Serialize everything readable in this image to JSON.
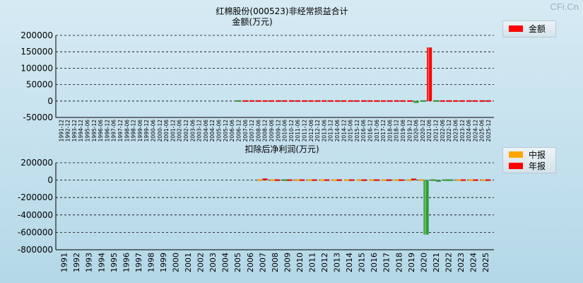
{
  "watermark": "CFi.Cn",
  "colors": {
    "red": "#ff0000",
    "orange": "#ffa500",
    "green": "#2e9e2e",
    "grid": "#000000"
  },
  "chart_data": [
    {
      "type": "bar",
      "title": "红棉股份(000523)非经常损益合计",
      "subtitle": "金额(万元)",
      "ylim": [
        -50000,
        200000
      ],
      "yticks": [
        200000,
        150000,
        100000,
        50000,
        0,
        -50000
      ],
      "grid": true,
      "legend_position": "top-right",
      "categories": [
        "1991-12",
        "1992-12",
        "1993-12",
        "1994-12",
        "1995-06",
        "1995-12",
        "1996-06",
        "1996-12",
        "1997-06",
        "1997-12",
        "1998-06",
        "1998-12",
        "1999-06",
        "1999-12",
        "2000-06",
        "2000-12",
        "2001-06",
        "2001-12",
        "2002-06",
        "2002-12",
        "2003-06",
        "2003-12",
        "2004-06",
        "2004-12",
        "2005-06",
        "2005-12",
        "2006-06",
        "2006-12",
        "2007-06",
        "2007-12",
        "2008-06",
        "2008-12",
        "2009-06",
        "2009-12",
        "2010-06",
        "2010-12",
        "2011-06",
        "2011-12",
        "2012-06",
        "2012-12",
        "2013-06",
        "2013-12",
        "2014-06",
        "2014-12",
        "2015-06",
        "2015-12",
        "2016-06",
        "2016-12",
        "2017-06",
        "2017-12",
        "2018-06",
        "2018-12",
        "2019-06",
        "2019-12",
        "2020-06",
        "2020-12",
        "2021-06",
        "2021-12",
        "2022-06",
        "2022-12",
        "2023-06",
        "2023-12",
        "2024-06",
        "2024-12",
        "2025-06",
        "2025-12"
      ],
      "series": [
        {
          "name": "金额",
          "color": "#ff0000",
          "values": [
            null,
            null,
            null,
            null,
            null,
            null,
            null,
            null,
            null,
            null,
            null,
            null,
            null,
            null,
            null,
            null,
            null,
            null,
            null,
            null,
            null,
            null,
            null,
            null,
            null,
            null,
            null,
            -300,
            1200,
            1500,
            900,
            1100,
            800,
            1000,
            700,
            900,
            600,
            800,
            700,
            900,
            600,
            800,
            700,
            900,
            600,
            800,
            700,
            900,
            1000,
            1200,
            900,
            1100,
            2500,
            3500,
            -5500,
            -2000,
            163000,
            -1500,
            600,
            800,
            500,
            2500,
            700,
            900,
            1200,
            1500
          ]
        }
      ]
    },
    {
      "type": "bar",
      "title": "扣除后净利润(万元)",
      "ylim": [
        -800000,
        200000
      ],
      "yticks": [
        200000,
        0,
        -200000,
        -400000,
        -600000,
        -800000
      ],
      "grid": true,
      "legend_position": "top-right",
      "categories": [
        "1991",
        "1992",
        "1993",
        "1994",
        "1995",
        "1996",
        "1997",
        "1998",
        "1999",
        "2000",
        "2001",
        "2002",
        "2003",
        "2004",
        "2005",
        "2006",
        "2007",
        "2008",
        "2009",
        "2010",
        "2011",
        "2012",
        "2013",
        "2014",
        "2015",
        "2016",
        "2017",
        "2018",
        "2019",
        "2020",
        "2021",
        "2022",
        "2023",
        "2024",
        "2025"
      ],
      "series": [
        {
          "name": "中报",
          "color": "#ffa500",
          "values": [
            null,
            null,
            null,
            null,
            null,
            null,
            null,
            null,
            null,
            null,
            null,
            null,
            null,
            null,
            null,
            null,
            15000,
            12000,
            -8000,
            10000,
            12000,
            11000,
            9000,
            10000,
            12000,
            11000,
            10000,
            12000,
            13000,
            8000,
            -12000,
            -6000,
            10000,
            12000,
            11000
          ]
        },
        {
          "name": "年报",
          "color": "#ff0000",
          "values": [
            null,
            null,
            null,
            null,
            null,
            null,
            null,
            null,
            null,
            null,
            null,
            null,
            null,
            null,
            null,
            null,
            18000,
            15000,
            12000,
            14000,
            16000,
            15000,
            13000,
            14000,
            16000,
            15000,
            14000,
            16000,
            17000,
            -625000,
            -18000,
            -4000,
            14000,
            16000,
            15000
          ]
        }
      ]
    }
  ]
}
